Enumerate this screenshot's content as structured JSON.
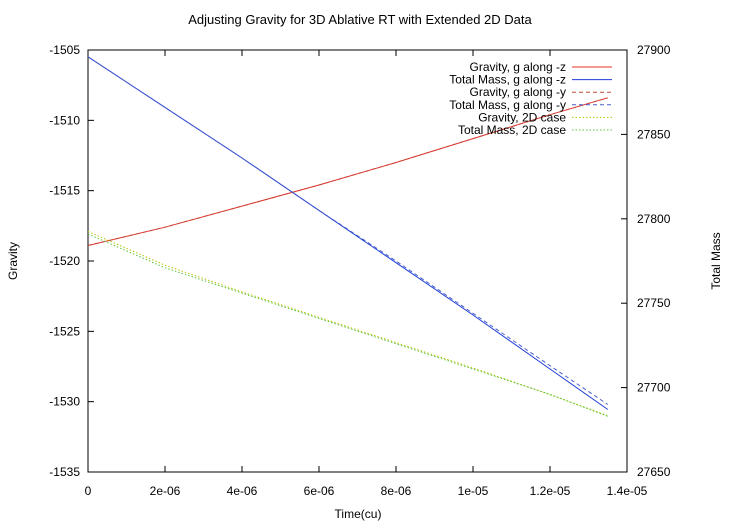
{
  "chart_data": {
    "type": "line",
    "title": "Adjusting Gravity for 3D Ablative RT with Extended 2D Data",
    "xlabel": "Time(cu)",
    "ylabel": "Gravity",
    "y2label": "Total Mass",
    "xlim": [
      0,
      1.4e-05
    ],
    "ylim": [
      -1535,
      -1505
    ],
    "y2lim": [
      27650,
      27900
    ],
    "grid": false,
    "legend_position": "top-right",
    "x_ticks": [
      "0",
      "2e-06",
      "4e-06",
      "6e-06",
      "8e-06",
      "1e-05",
      "1.2e-05",
      "1.4e-05"
    ],
    "y_ticks": [
      "-1505",
      "-1510",
      "-1515",
      "-1520",
      "-1525",
      "-1530",
      "-1535"
    ],
    "y2_ticks": [
      "27900",
      "27850",
      "27800",
      "27750",
      "27700",
      "27650"
    ],
    "series": [
      {
        "name": "Gravity, g along -z",
        "axis": "y",
        "color": "#e8302c",
        "dash": "solid",
        "x": [
          0,
          2e-06,
          4e-06,
          6e-06,
          8e-06,
          1e-05,
          1.2e-05,
          1.35e-05
        ],
        "y": [
          -1518.9,
          -1517.6,
          -1516.1,
          -1514.6,
          -1513.0,
          -1511.3,
          -1509.6,
          -1508.4
        ]
      },
      {
        "name": "Total Mass, g along -z",
        "axis": "y2",
        "color": "#1f3ed8",
        "dash": "solid",
        "x": [
          0,
          2e-06,
          4e-06,
          6e-06,
          8e-06,
          1e-05,
          1.2e-05,
          1.35e-05
        ],
        "y": [
          27896,
          27866,
          27836,
          27805,
          27774,
          27743,
          27711,
          27687
        ]
      },
      {
        "name": "Gravity, g along -y",
        "axis": "y",
        "color": "#c44a3a",
        "dash": "dashed",
        "x": [
          0,
          2e-06,
          4e-06,
          6e-06,
          8e-06,
          1e-05,
          1.2e-05,
          1.35e-05
        ],
        "y": [
          -1518.9,
          -1517.6,
          -1516.1,
          -1514.6,
          -1513.0,
          -1511.3,
          -1509.6,
          -1508.4
        ]
      },
      {
        "name": "Total Mass, g along -y",
        "axis": "y2",
        "color": "#4a5fc8",
        "dash": "dashed",
        "x": [
          0,
          2e-06,
          4e-06,
          6e-06,
          8e-06,
          1e-05,
          1.2e-05,
          1.35e-05
        ],
        "y": [
          27896,
          27866,
          27836,
          27805,
          27775,
          27744,
          27713,
          27690
        ]
      },
      {
        "name": "Gravity, 2D case",
        "axis": "y",
        "color": "#b7c400",
        "dash": "dotted",
        "x": [
          0,
          2e-06,
          4e-06,
          6e-06,
          8e-06,
          1e-05,
          1.2e-05,
          1.35e-05
        ],
        "y": [
          -1517.9,
          -1520.3,
          -1522.2,
          -1524.0,
          -1525.8,
          -1527.6,
          -1529.5,
          -1531.0
        ]
      },
      {
        "name": "Total Mass, 2D case",
        "axis": "y2",
        "color": "#57c440",
        "dash": "dotted",
        "x": [
          0,
          2e-06,
          4e-06,
          6e-06,
          8e-06,
          1e-05,
          1.2e-05,
          1.35e-05
        ],
        "y": [
          27791,
          27771,
          27756,
          27741,
          27726,
          27711,
          27696,
          27683
        ]
      }
    ]
  }
}
